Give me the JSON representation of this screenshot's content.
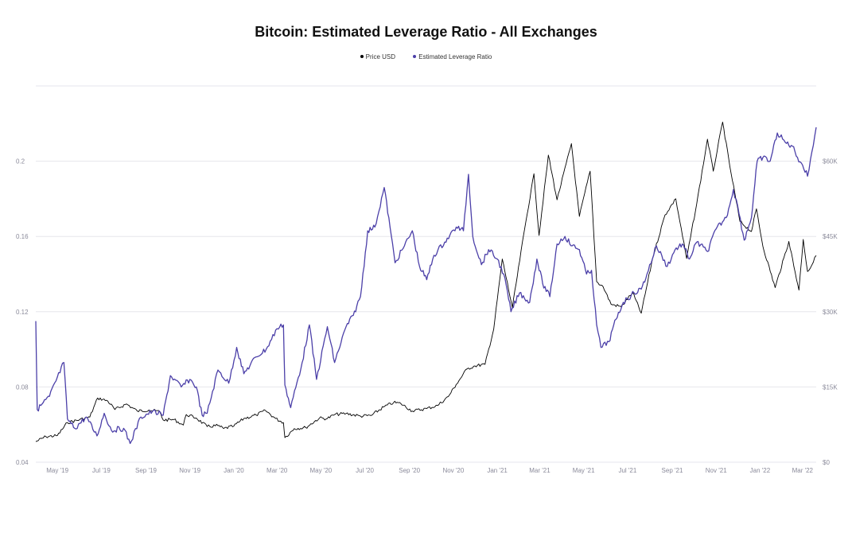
{
  "chart_data": {
    "type": "line",
    "title": "Bitcoin: Estimated Leverage Ratio - All Exchanges",
    "legend_position": "top-center",
    "grid": true,
    "x_ticks": [
      "May '19",
      "Jul '19",
      "Sep '19",
      "Nov '19",
      "Jan '20",
      "Mar '20",
      "May '20",
      "Jul '20",
      "Sep '20",
      "Nov '20",
      "Jan '21",
      "Mar '21",
      "May '21",
      "Jul '21",
      "Sep '21",
      "Nov '21",
      "Jan '22",
      "Mar '22"
    ],
    "x_range": [
      "2019-04-01",
      "2022-03-20"
    ],
    "y_left": {
      "ticks": [
        "0.04",
        "0.08",
        "0.12",
        "0.16",
        "0.2"
      ],
      "lim": [
        0.04,
        0.24
      ]
    },
    "y_right": {
      "ticks": [
        "$0",
        "$15K",
        "$30K",
        "$45K",
        "$60K"
      ],
      "lim": [
        0,
        75000
      ]
    },
    "series": [
      {
        "name": "Price USD",
        "axis": "right",
        "color": "#000000",
        "points": [
          [
            "2019-04-01",
            4100
          ],
          [
            "2019-04-15",
            5100
          ],
          [
            "2019-05-01",
            5300
          ],
          [
            "2019-05-15",
            7900
          ],
          [
            "2019-06-01",
            8500
          ],
          [
            "2019-06-15",
            9000
          ],
          [
            "2019-06-26",
            12800
          ],
          [
            "2019-07-10",
            12200
          ],
          [
            "2019-07-20",
            10500
          ],
          [
            "2019-08-05",
            11600
          ],
          [
            "2019-08-20",
            10200
          ],
          [
            "2019-09-05",
            10400
          ],
          [
            "2019-09-20",
            10100
          ],
          [
            "2019-09-25",
            8400
          ],
          [
            "2019-10-10",
            8500
          ],
          [
            "2019-10-23",
            7400
          ],
          [
            "2019-10-27",
            9500
          ],
          [
            "2019-11-10",
            8800
          ],
          [
            "2019-11-25",
            7100
          ],
          [
            "2019-12-10",
            7300
          ],
          [
            "2019-12-18",
            6700
          ],
          [
            "2020-01-01",
            7200
          ],
          [
            "2020-01-15",
            8700
          ],
          [
            "2020-02-01",
            9400
          ],
          [
            "2020-02-14",
            10300
          ],
          [
            "2020-02-28",
            8700
          ],
          [
            "2020-03-10",
            7900
          ],
          [
            "2020-03-12",
            4900
          ],
          [
            "2020-03-25",
            6700
          ],
          [
            "2020-04-10",
            6900
          ],
          [
            "2020-04-29",
            8800
          ],
          [
            "2020-05-10",
            8700
          ],
          [
            "2020-05-20",
            9500
          ],
          [
            "2020-06-05",
            9700
          ],
          [
            "2020-06-25",
            9200
          ],
          [
            "2020-07-10",
            9300
          ],
          [
            "2020-07-27",
            11000
          ],
          [
            "2020-08-10",
            11900
          ],
          [
            "2020-08-20",
            11700
          ],
          [
            "2020-09-05",
            10200
          ],
          [
            "2020-09-25",
            10700
          ],
          [
            "2020-10-10",
            11300
          ],
          [
            "2020-10-25",
            13100
          ],
          [
            "2020-11-05",
            15500
          ],
          [
            "2020-11-20",
            18600
          ],
          [
            "2020-12-01",
            19200
          ],
          [
            "2020-12-15",
            19500
          ],
          [
            "2020-12-27",
            26500
          ],
          [
            "2021-01-08",
            40500
          ],
          [
            "2021-01-22",
            30800
          ],
          [
            "2021-02-08",
            46500
          ],
          [
            "2021-02-21",
            57500
          ],
          [
            "2021-02-28",
            45200
          ],
          [
            "2021-03-13",
            61200
          ],
          [
            "2021-03-25",
            52300
          ],
          [
            "2021-04-14",
            63500
          ],
          [
            "2021-04-25",
            49000
          ],
          [
            "2021-05-10",
            58000
          ],
          [
            "2021-05-19",
            36000
          ],
          [
            "2021-05-28",
            35000
          ],
          [
            "2021-06-08",
            31500
          ],
          [
            "2021-06-22",
            31000
          ],
          [
            "2021-07-08",
            33800
          ],
          [
            "2021-07-20",
            29700
          ],
          [
            "2021-08-05",
            40800
          ],
          [
            "2021-08-22",
            49300
          ],
          [
            "2021-09-06",
            52500
          ],
          [
            "2021-09-21",
            40600
          ],
          [
            "2021-10-05",
            51500
          ],
          [
            "2021-10-20",
            64400
          ],
          [
            "2021-10-28",
            58000
          ],
          [
            "2021-11-10",
            67800
          ],
          [
            "2021-11-20",
            59000
          ],
          [
            "2021-12-04",
            48000
          ],
          [
            "2021-12-20",
            46000
          ],
          [
            "2021-12-27",
            50500
          ],
          [
            "2022-01-05",
            43000
          ],
          [
            "2022-01-22",
            34800
          ],
          [
            "2022-02-10",
            44000
          ],
          [
            "2022-02-24",
            34300
          ],
          [
            "2022-03-02",
            44400
          ],
          [
            "2022-03-08",
            38000
          ],
          [
            "2022-03-14",
            39300
          ],
          [
            "2022-03-20",
            41200
          ]
        ]
      },
      {
        "name": "Estimated Leverage Ratio",
        "axis": "left",
        "color": "#4b3fa8",
        "points": [
          [
            "2019-04-01",
            0.115
          ],
          [
            "2019-04-03",
            0.068
          ],
          [
            "2019-04-20",
            0.075
          ],
          [
            "2019-05-10",
            0.093
          ],
          [
            "2019-05-15",
            0.063
          ],
          [
            "2019-05-25",
            0.058
          ],
          [
            "2019-06-10",
            0.064
          ],
          [
            "2019-06-25",
            0.054
          ],
          [
            "2019-07-05",
            0.066
          ],
          [
            "2019-07-15",
            0.057
          ],
          [
            "2019-08-01",
            0.058
          ],
          [
            "2019-08-10",
            0.05
          ],
          [
            "2019-08-25",
            0.064
          ],
          [
            "2019-09-10",
            0.067
          ],
          [
            "2019-09-25",
            0.065
          ],
          [
            "2019-10-05",
            0.086
          ],
          [
            "2019-10-20",
            0.08
          ],
          [
            "2019-11-01",
            0.084
          ],
          [
            "2019-11-10",
            0.08
          ],
          [
            "2019-11-18",
            0.065
          ],
          [
            "2019-11-25",
            0.066
          ],
          [
            "2019-12-10",
            0.089
          ],
          [
            "2019-12-25",
            0.082
          ],
          [
            "2020-01-05",
            0.101
          ],
          [
            "2020-01-15",
            0.087
          ],
          [
            "2020-02-01",
            0.096
          ],
          [
            "2020-02-15",
            0.1
          ],
          [
            "2020-03-01",
            0.111
          ],
          [
            "2020-03-10",
            0.113
          ],
          [
            "2020-03-12",
            0.081
          ],
          [
            "2020-03-20",
            0.069
          ],
          [
            "2020-04-05",
            0.093
          ],
          [
            "2020-04-15",
            0.113
          ],
          [
            "2020-04-25",
            0.084
          ],
          [
            "2020-05-10",
            0.112
          ],
          [
            "2020-05-20",
            0.093
          ],
          [
            "2020-06-05",
            0.112
          ],
          [
            "2020-06-15",
            0.118
          ],
          [
            "2020-06-25",
            0.128
          ],
          [
            "2020-07-05",
            0.163
          ],
          [
            "2020-07-15",
            0.165
          ],
          [
            "2020-07-28",
            0.186
          ],
          [
            "2020-08-05",
            0.165
          ],
          [
            "2020-08-12",
            0.146
          ],
          [
            "2020-08-25",
            0.155
          ],
          [
            "2020-09-05",
            0.163
          ],
          [
            "2020-09-15",
            0.144
          ],
          [
            "2020-09-25",
            0.137
          ],
          [
            "2020-10-05",
            0.15
          ],
          [
            "2020-10-20",
            0.157
          ],
          [
            "2020-11-05",
            0.165
          ],
          [
            "2020-11-15",
            0.163
          ],
          [
            "2020-11-22",
            0.193
          ],
          [
            "2020-11-28",
            0.16
          ],
          [
            "2020-12-10",
            0.145
          ],
          [
            "2020-12-20",
            0.153
          ],
          [
            "2021-01-01",
            0.148
          ],
          [
            "2021-01-10",
            0.14
          ],
          [
            "2021-01-20",
            0.12
          ],
          [
            "2021-02-01",
            0.13
          ],
          [
            "2021-02-15",
            0.125
          ],
          [
            "2021-02-25",
            0.148
          ],
          [
            "2021-03-05",
            0.135
          ],
          [
            "2021-03-15",
            0.128
          ],
          [
            "2021-03-25",
            0.156
          ],
          [
            "2021-04-05",
            0.16
          ],
          [
            "2021-04-15",
            0.155
          ],
          [
            "2021-04-25",
            0.153
          ],
          [
            "2021-05-05",
            0.14
          ],
          [
            "2021-05-12",
            0.142
          ],
          [
            "2021-05-19",
            0.113
          ],
          [
            "2021-05-25",
            0.101
          ],
          [
            "2021-06-05",
            0.104
          ],
          [
            "2021-06-15",
            0.116
          ],
          [
            "2021-06-25",
            0.125
          ],
          [
            "2021-07-10",
            0.13
          ],
          [
            "2021-07-20",
            0.132
          ],
          [
            "2021-07-28",
            0.14
          ],
          [
            "2021-08-10",
            0.155
          ],
          [
            "2021-08-25",
            0.144
          ],
          [
            "2021-09-05",
            0.153
          ],
          [
            "2021-09-15",
            0.156
          ],
          [
            "2021-09-25",
            0.148
          ],
          [
            "2021-10-05",
            0.157
          ],
          [
            "2021-10-20",
            0.152
          ],
          [
            "2021-11-01",
            0.164
          ],
          [
            "2021-11-15",
            0.17
          ],
          [
            "2021-11-25",
            0.185
          ],
          [
            "2021-12-01",
            0.176
          ],
          [
            "2021-12-10",
            0.158
          ],
          [
            "2021-12-20",
            0.17
          ],
          [
            "2021-12-28",
            0.2
          ],
          [
            "2022-01-05",
            0.202
          ],
          [
            "2022-01-15",
            0.2
          ],
          [
            "2022-01-25",
            0.215
          ],
          [
            "2022-02-05",
            0.21
          ],
          [
            "2022-02-15",
            0.208
          ],
          [
            "2022-02-22",
            0.202
          ],
          [
            "2022-03-01",
            0.198
          ],
          [
            "2022-03-08",
            0.192
          ],
          [
            "2022-03-14",
            0.205
          ],
          [
            "2022-03-20",
            0.218
          ]
        ]
      }
    ]
  }
}
